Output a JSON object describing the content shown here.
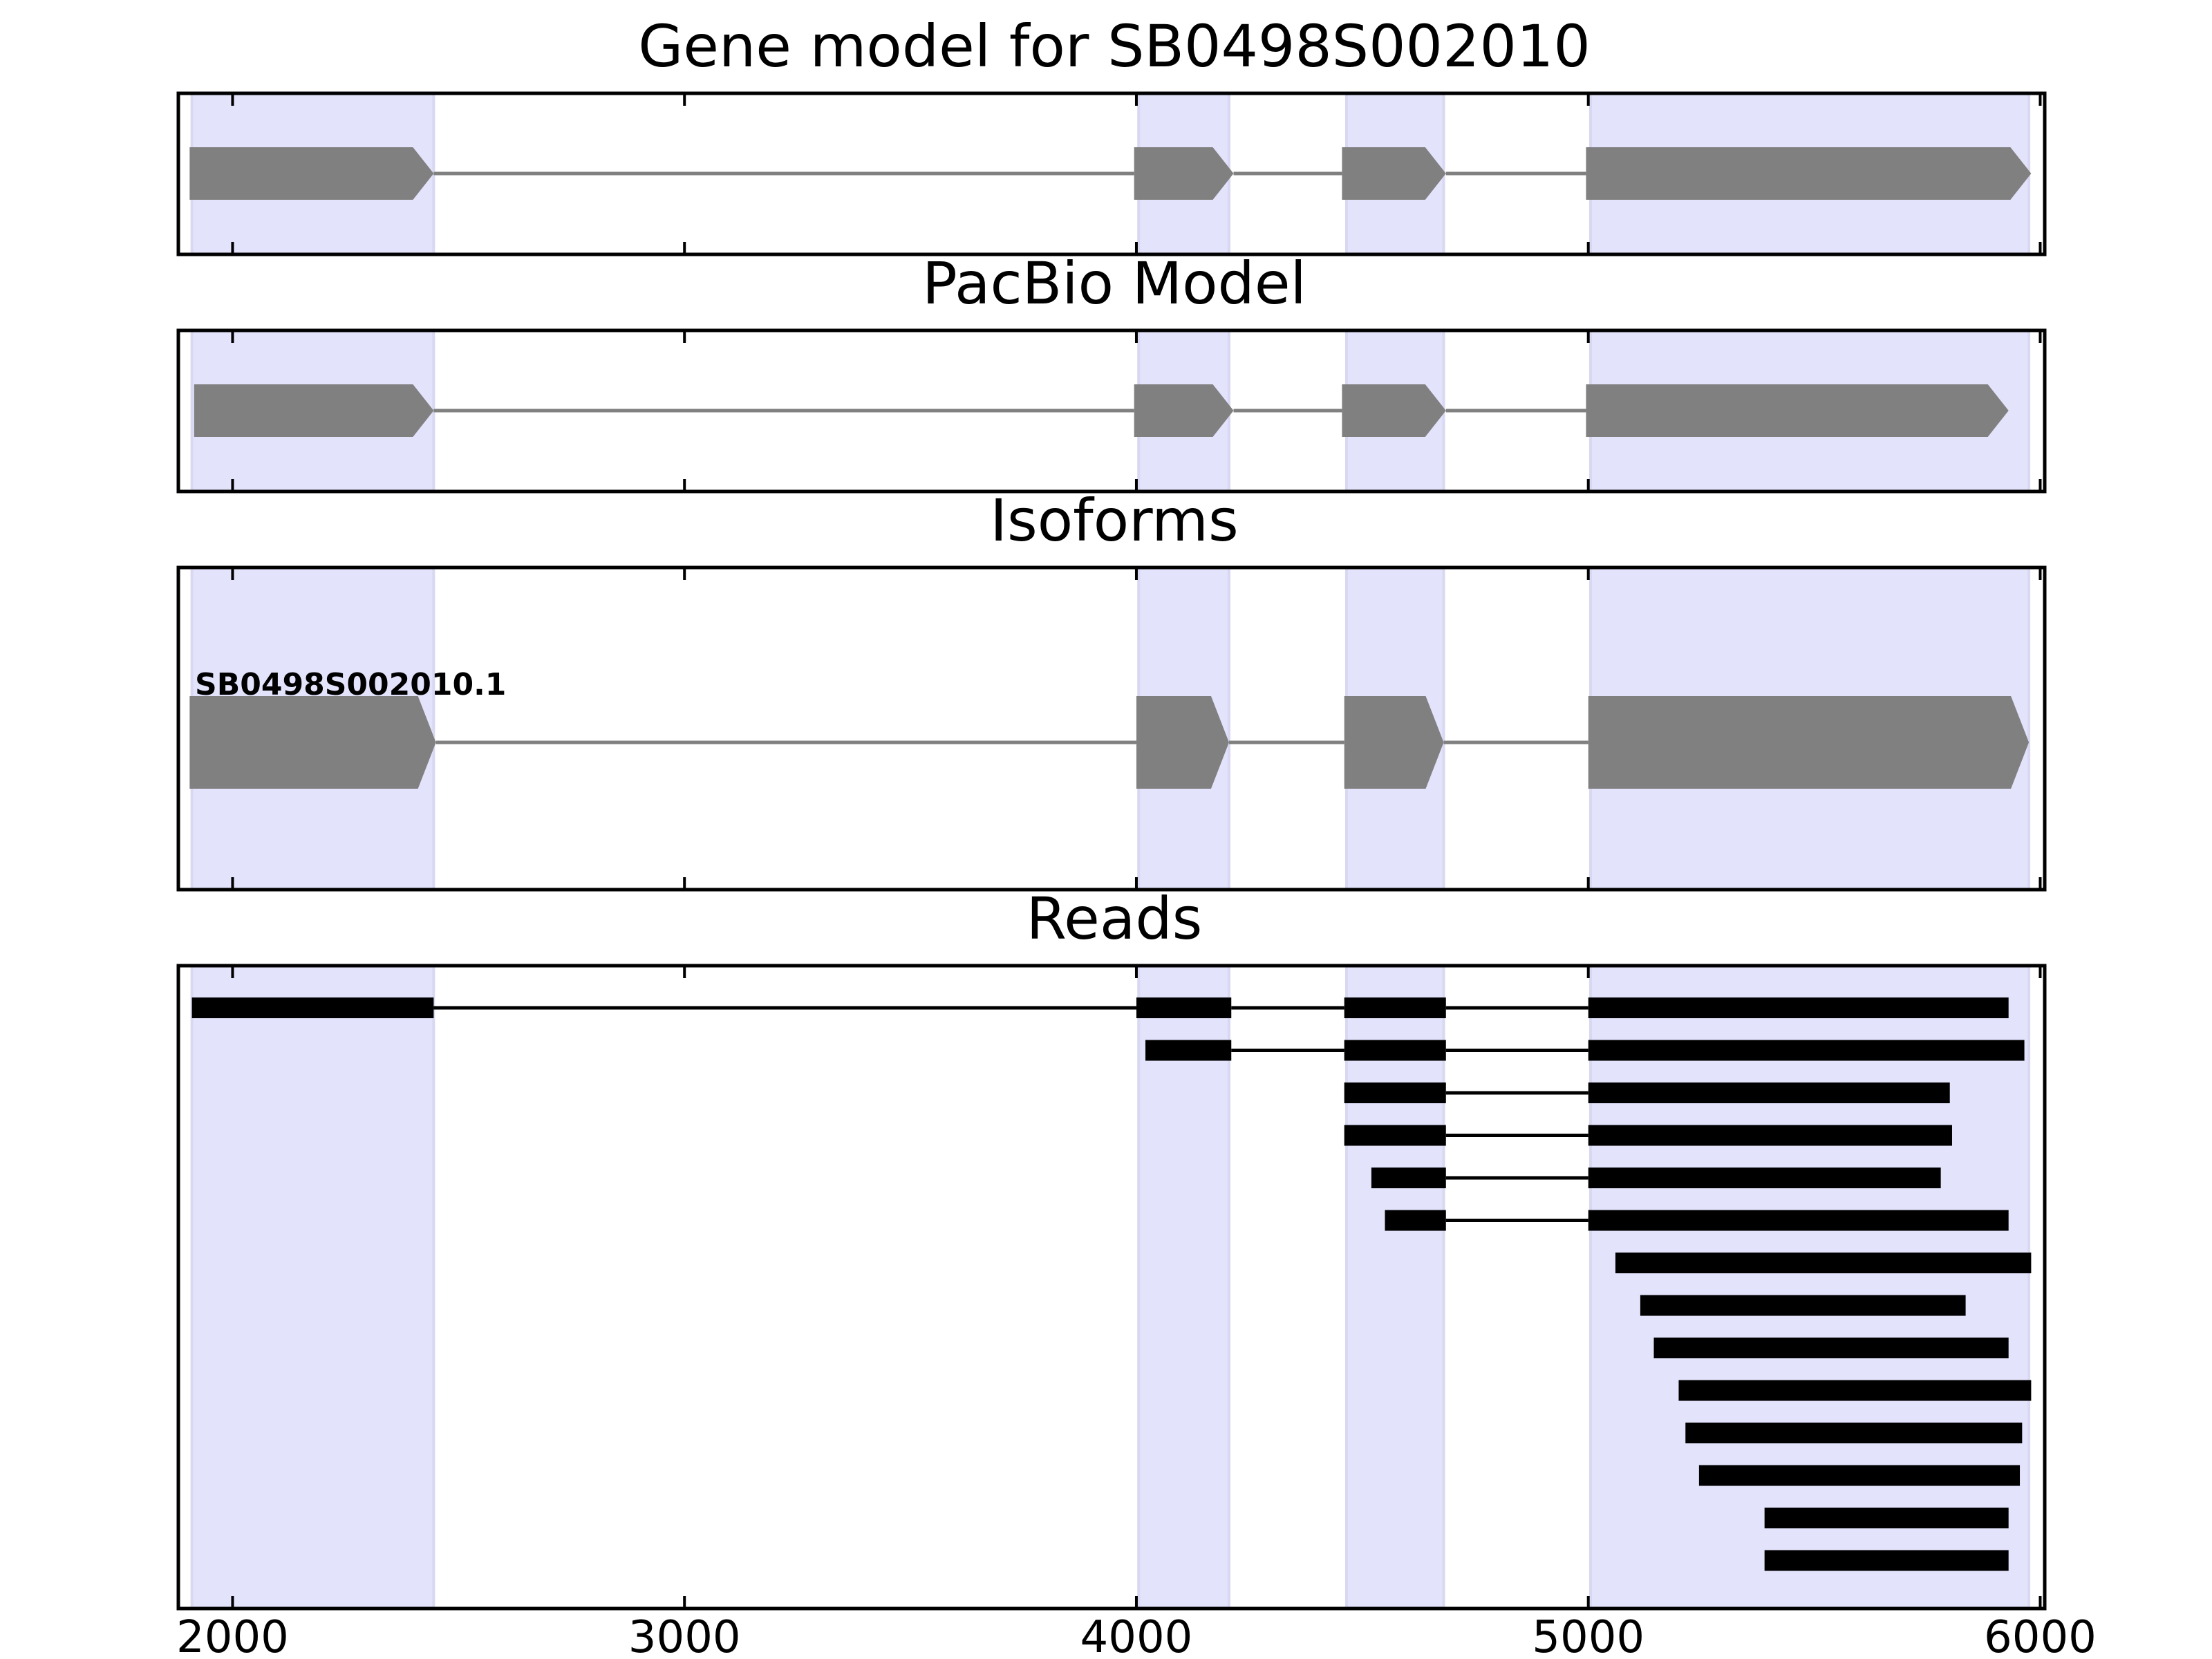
{
  "chart_data": {
    "type": "gene_model",
    "xlim": [
      1880,
      6010
    ],
    "x_ticks": [
      2000,
      3000,
      4000,
      5000,
      6000
    ],
    "x_tick_labels": [
      "2000",
      "3000",
      "4000",
      "5000",
      "6000"
    ],
    "exon_shading": [
      [
        1910,
        2445
      ],
      [
        4005,
        4205
      ],
      [
        4465,
        4680
      ],
      [
        5005,
        5975
      ]
    ],
    "colors": {
      "shade": "#e3e3fc",
      "shade_edge": "#d8d8f2",
      "feature": "#808080",
      "read": "#000000"
    },
    "panels": [
      {
        "id": "gene-model",
        "title": "Gene model for SB0498S002010",
        "strand": "+",
        "exons": [
          [
            1905,
            2445
          ],
          [
            3995,
            4215
          ],
          [
            4455,
            4685
          ],
          [
            4995,
            5980
          ]
        ]
      },
      {
        "id": "pacbio-model",
        "title": "PacBio Model",
        "strand": "+",
        "exons": [
          [
            1915,
            2445
          ],
          [
            3995,
            4215
          ],
          [
            4455,
            4685
          ],
          [
            4995,
            5930
          ]
        ]
      },
      {
        "id": "isoforms",
        "title": "Isoforms",
        "strand": "+",
        "isoform_label": "SB0498S002010.1",
        "exons": [
          [
            1905,
            2450
          ],
          [
            4000,
            4205
          ],
          [
            4460,
            4680
          ],
          [
            5000,
            5975
          ]
        ]
      }
    ],
    "reads_panel": {
      "title": "Reads",
      "reads": [
        [
          [
            1910,
            2445
          ],
          [
            4000,
            4210
          ],
          [
            4460,
            4685
          ],
          [
            5000,
            5930
          ]
        ],
        [
          [
            4020,
            4210
          ],
          [
            4460,
            4685
          ],
          [
            5000,
            5965
          ]
        ],
        [
          [
            4460,
            4685
          ],
          [
            5000,
            5800
          ]
        ],
        [
          [
            4460,
            4685
          ],
          [
            5000,
            5805
          ]
        ],
        [
          [
            4520,
            4685
          ],
          [
            5000,
            5780
          ]
        ],
        [
          [
            4550,
            4685
          ],
          [
            5000,
            5930
          ]
        ],
        [
          [
            5060,
            5980
          ]
        ],
        [
          [
            5115,
            5835
          ]
        ],
        [
          [
            5145,
            5930
          ]
        ],
        [
          [
            5200,
            5980
          ]
        ],
        [
          [
            5215,
            5960
          ]
        ],
        [
          [
            5245,
            5955
          ]
        ],
        [
          [
            5390,
            5930
          ]
        ],
        [
          [
            5390,
            5930
          ]
        ]
      ]
    }
  }
}
